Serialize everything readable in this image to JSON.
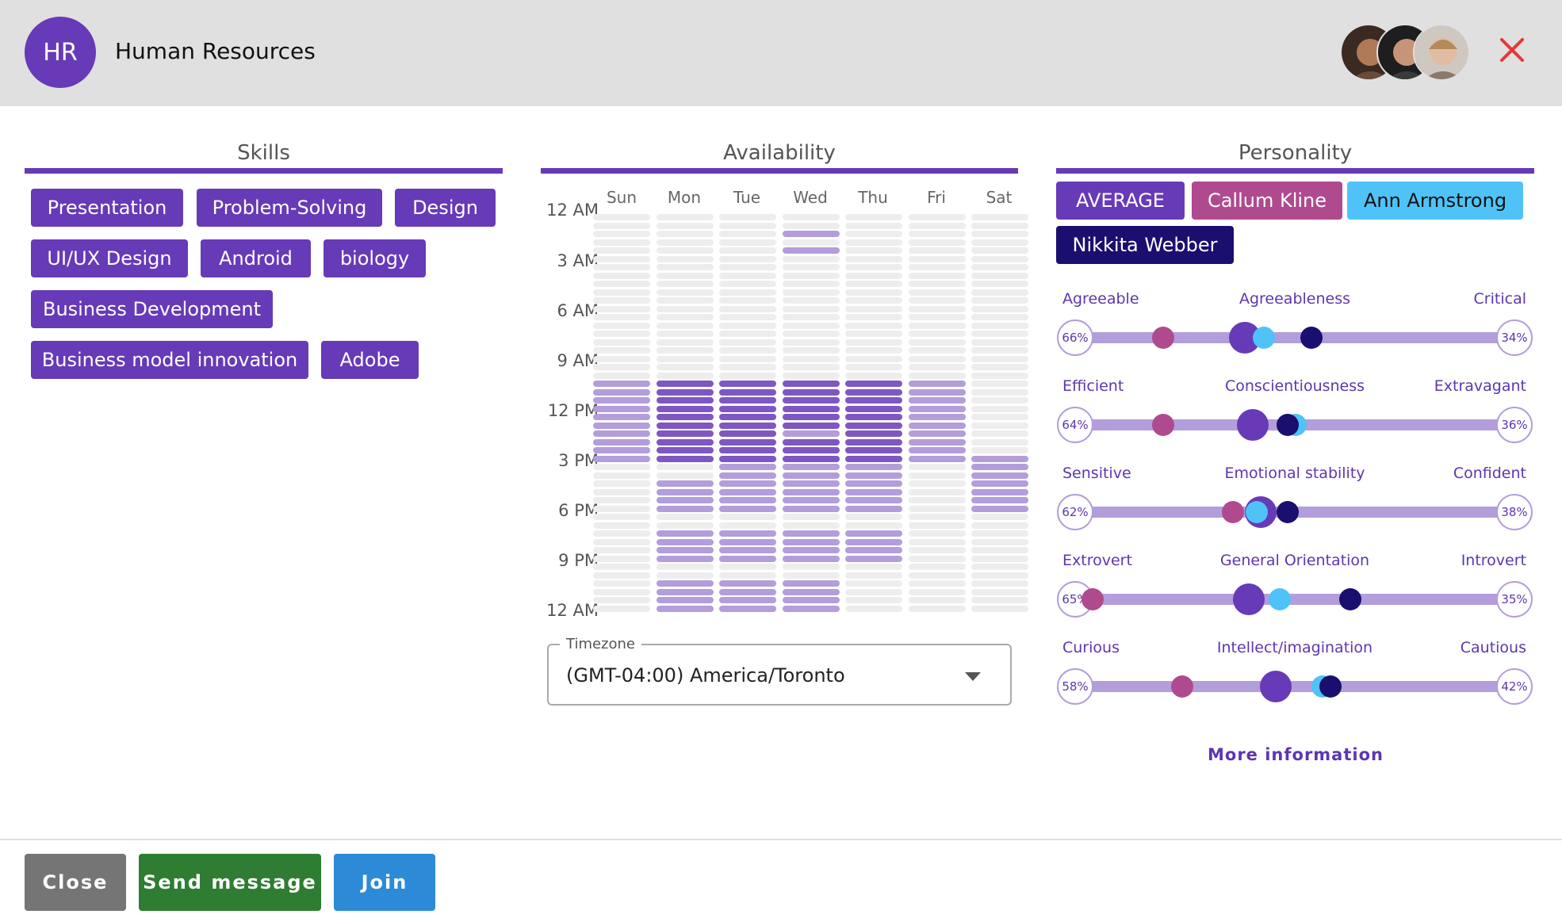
{
  "header": {
    "initials": "HR",
    "team_name": "Human Resources",
    "members": [
      "member-avatar-1",
      "member-avatar-2",
      "member-avatar-3"
    ],
    "close_icon": "close-icon"
  },
  "skills": {
    "title": "Skills",
    "items": [
      "Presentation",
      "Problem-Solving",
      "Design",
      "UI/UX Design",
      "Android",
      "biology",
      "Business Development",
      "Business model innovation",
      "Adobe"
    ]
  },
  "availability": {
    "title": "Availability",
    "days": [
      "Sun",
      "Mon",
      "Tue",
      "Wed",
      "Thu",
      "Fri",
      "Sat"
    ],
    "times": [
      "12 AM",
      "3 AM",
      "6 AM",
      "9 AM",
      "12 PM",
      "3 PM",
      "6 PM",
      "9 PM",
      "12 AM"
    ],
    "levels": [
      [
        0,
        0,
        0,
        0,
        0,
        0,
        0
      ],
      [
        0,
        0,
        0,
        0,
        0,
        0,
        0
      ],
      [
        0,
        0,
        0,
        1,
        0,
        0,
        0
      ],
      [
        0,
        0,
        0,
        0,
        0,
        0,
        0
      ],
      [
        0,
        0,
        0,
        1,
        0,
        0,
        0
      ],
      [
        0,
        0,
        0,
        0,
        0,
        0,
        0
      ],
      [
        0,
        0,
        0,
        0,
        0,
        0,
        0
      ],
      [
        0,
        0,
        0,
        0,
        0,
        0,
        0
      ],
      [
        0,
        0,
        0,
        0,
        0,
        0,
        0
      ],
      [
        0,
        0,
        0,
        0,
        0,
        0,
        0
      ],
      [
        0,
        0,
        0,
        0,
        0,
        0,
        0
      ],
      [
        0,
        0,
        0,
        0,
        0,
        0,
        0
      ],
      [
        0,
        0,
        0,
        0,
        0,
        0,
        0
      ],
      [
        0,
        0,
        0,
        0,
        0,
        0,
        0
      ],
      [
        0,
        0,
        0,
        0,
        0,
        0,
        0
      ],
      [
        0,
        0,
        0,
        0,
        0,
        0,
        0
      ],
      [
        0,
        0,
        0,
        0,
        0,
        0,
        0
      ],
      [
        0,
        0,
        0,
        0,
        0,
        0,
        0
      ],
      [
        0,
        0,
        0,
        0,
        0,
        0,
        0
      ],
      [
        0,
        0,
        0,
        0,
        0,
        0,
        0
      ],
      [
        1,
        2,
        2,
        2,
        2,
        1,
        0
      ],
      [
        1,
        2,
        2,
        2,
        2,
        1,
        0
      ],
      [
        1,
        2,
        2,
        2,
        2,
        1,
        0
      ],
      [
        1,
        2,
        2,
        2,
        2,
        1,
        0
      ],
      [
        1,
        2,
        2,
        2,
        2,
        1,
        0
      ],
      [
        1,
        2,
        2,
        2,
        2,
        1,
        0
      ],
      [
        1,
        2,
        2,
        1,
        2,
        1,
        0
      ],
      [
        1,
        2,
        2,
        2,
        2,
        1,
        0
      ],
      [
        1,
        2,
        2,
        2,
        2,
        1,
        0
      ],
      [
        1,
        2,
        2,
        2,
        2,
        1,
        1
      ],
      [
        0,
        0,
        1,
        1,
        1,
        0,
        1
      ],
      [
        0,
        0,
        1,
        1,
        1,
        0,
        1
      ],
      [
        0,
        1,
        1,
        1,
        1,
        0,
        1
      ],
      [
        0,
        1,
        1,
        1,
        1,
        0,
        1
      ],
      [
        0,
        1,
        1,
        1,
        1,
        0,
        1
      ],
      [
        0,
        1,
        1,
        1,
        1,
        0,
        1
      ],
      [
        0,
        0,
        0,
        0,
        0,
        0,
        0
      ],
      [
        0,
        0,
        0,
        0,
        0,
        0,
        0
      ],
      [
        0,
        1,
        1,
        1,
        1,
        0,
        0
      ],
      [
        0,
        1,
        1,
        1,
        1,
        0,
        0
      ],
      [
        0,
        1,
        1,
        1,
        1,
        0,
        0
      ],
      [
        0,
        1,
        1,
        1,
        1,
        0,
        0
      ],
      [
        0,
        0,
        0,
        0,
        0,
        0,
        0
      ],
      [
        0,
        0,
        0,
        0,
        0,
        0,
        0
      ],
      [
        0,
        1,
        1,
        1,
        0,
        0,
        0
      ],
      [
        0,
        1,
        1,
        1,
        0,
        0,
        0
      ],
      [
        0,
        1,
        1,
        1,
        0,
        0,
        0
      ],
      [
        0,
        1,
        1,
        1,
        0,
        0,
        0
      ]
    ],
    "colors": [
      "#ededed",
      "#b39ddb",
      "#7e57c2"
    ],
    "timezone_label": "Timezone",
    "timezone_value": "(GMT-04:00) America/Toronto",
    "timezone_icon": "chevron-down-icon"
  },
  "personality": {
    "title": "Personality",
    "people": [
      {
        "name": "AVERAGE",
        "color": "#673ab7",
        "text_color": "#ffffff"
      },
      {
        "name": "Callum Kline",
        "color": "#b04a8e",
        "text_color": "#ffffff"
      },
      {
        "name": "Ann Armstrong",
        "color": "#4fc3f7",
        "text_color": "#111111"
      },
      {
        "name": "Nikkita Webber",
        "color": "#1a0f6e",
        "text_color": "#ffffff"
      }
    ],
    "traits": [
      {
        "left": "Agreeable",
        "name": "Agreeableness",
        "right": "Critical",
        "left_pct": "66%",
        "right_pct": "34%",
        "avg": 0.39,
        "callum": 0.18,
        "ann": 0.44,
        "nikkita": 0.56
      },
      {
        "left": "Efficient",
        "name": "Conscientiousness",
        "right": "Extravagant",
        "left_pct": "64%",
        "right_pct": "36%",
        "avg": 0.41,
        "callum": 0.18,
        "ann": 0.52,
        "nikkita": 0.5
      },
      {
        "left": "Sensitive",
        "name": "Emotional stability",
        "right": "Confident",
        "left_pct": "62%",
        "right_pct": "38%",
        "avg": 0.43,
        "callum": 0.36,
        "ann": 0.42,
        "nikkita": 0.5
      },
      {
        "left": "Extrovert",
        "name": "General Orientation",
        "right": "Introvert",
        "left_pct": "65%",
        "right_pct": "35%",
        "avg": 0.4,
        "callum": 0.0,
        "ann": 0.48,
        "nikkita": 0.66
      },
      {
        "left": "Curious",
        "name": "Intellect/imagination",
        "right": "Cautious",
        "left_pct": "58%",
        "right_pct": "42%",
        "avg": 0.47,
        "callum": 0.23,
        "ann": 0.59,
        "nikkita": 0.61
      }
    ],
    "more_link": "More information"
  },
  "footer": {
    "close_label": "Close",
    "send_label": "Send message",
    "join_label": "Join",
    "close_color": "#757575",
    "send_color": "#2e7d32",
    "join_color": "#2d8ad6"
  }
}
